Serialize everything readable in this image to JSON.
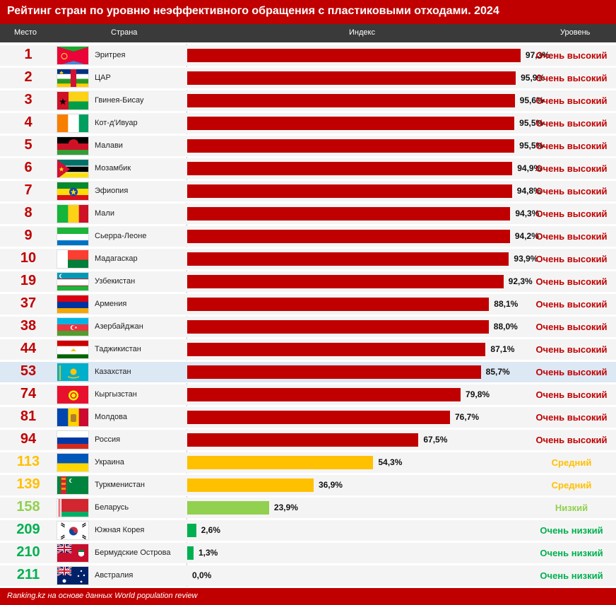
{
  "title": "Рейтинг стран по уровню неэффективного обращения с пластиковыми отходами. 2024",
  "headers": {
    "place": "Место",
    "country": "Страна",
    "index": "Индекс",
    "level": "Уровень"
  },
  "footer": "Ranking.kz на основе данных World population review",
  "colors": {
    "title_bg": "#c00000",
    "header_bg": "#3a3a3a",
    "very_high": "#c00000",
    "medium": "#ffc000",
    "low": "#92d050",
    "very_low": "#00b050",
    "highlight_row": "#dce8f4"
  },
  "chart_data": {
    "type": "bar",
    "orientation": "horizontal",
    "xlim": [
      0,
      100
    ],
    "value_suffix": "%",
    "rows": [
      {
        "rank": "1",
        "country": "Эритрея",
        "flag": "eritrea-flag",
        "value": 97.3,
        "label": "97,3%",
        "level": "Очень высокий",
        "cat": "very_high"
      },
      {
        "rank": "2",
        "country": "ЦАР",
        "flag": "car-flag",
        "value": 95.9,
        "label": "95,9%",
        "level": "Очень высокий",
        "cat": "very_high"
      },
      {
        "rank": "3",
        "country": "Гвинея-Бисау",
        "flag": "guinea-bissau-flag",
        "value": 95.6,
        "label": "95,6%",
        "level": "Очень высокий",
        "cat": "very_high"
      },
      {
        "rank": "4",
        "country": "Кот-д'Ивуар",
        "flag": "cote-divoire-flag",
        "value": 95.5,
        "label": "95,5%",
        "level": "Очень высокий",
        "cat": "very_high"
      },
      {
        "rank": "5",
        "country": "Малави",
        "flag": "malawi-flag",
        "value": 95.5,
        "label": "95,5%",
        "level": "Очень высокий",
        "cat": "very_high"
      },
      {
        "rank": "6",
        "country": "Мозамбик",
        "flag": "mozambique-flag",
        "value": 94.9,
        "label": "94,9%",
        "level": "Очень высокий",
        "cat": "very_high"
      },
      {
        "rank": "7",
        "country": "Эфиопия",
        "flag": "ethiopia-flag",
        "value": 94.8,
        "label": "94,8%",
        "level": "Очень высокий",
        "cat": "very_high"
      },
      {
        "rank": "8",
        "country": "Мали",
        "flag": "mali-flag",
        "value": 94.3,
        "label": "94,3%",
        "level": "Очень высокий",
        "cat": "very_high"
      },
      {
        "rank": "9",
        "country": "Сьерра-Леоне",
        "flag": "sierra-leone-flag",
        "value": 94.2,
        "label": "94,2%",
        "level": "Очень высокий",
        "cat": "very_high"
      },
      {
        "rank": "10",
        "country": "Мадагаскар",
        "flag": "madagascar-flag",
        "value": 93.9,
        "label": "93,9%",
        "level": "Очень высокий",
        "cat": "very_high"
      },
      {
        "rank": "19",
        "country": "Узбекистан",
        "flag": "uzbekistan-flag",
        "value": 92.3,
        "label": "92,3%",
        "level": "Очень высокий",
        "cat": "very_high"
      },
      {
        "rank": "37",
        "country": "Армения",
        "flag": "armenia-flag",
        "value": 88.1,
        "label": "88,1%",
        "level": "Очень высокий",
        "cat": "very_high"
      },
      {
        "rank": "38",
        "country": "Азербайджан",
        "flag": "azerbaijan-flag",
        "value": 88.0,
        "label": "88,0%",
        "level": "Очень высокий",
        "cat": "very_high"
      },
      {
        "rank": "44",
        "country": "Таджикистан",
        "flag": "tajikistan-flag",
        "value": 87.1,
        "label": "87,1%",
        "level": "Очень высокий",
        "cat": "very_high"
      },
      {
        "rank": "53",
        "country": "Казахстан",
        "flag": "kazakhstan-flag",
        "value": 85.7,
        "label": "85,7%",
        "level": "Очень высокий",
        "cat": "very_high",
        "highlight": true
      },
      {
        "rank": "74",
        "country": "Кыргызстан",
        "flag": "kyrgyzstan-flag",
        "value": 79.8,
        "label": "79,8%",
        "level": "Очень высокий",
        "cat": "very_high"
      },
      {
        "rank": "81",
        "country": "Молдова",
        "flag": "moldova-flag",
        "value": 76.7,
        "label": "76,7%",
        "level": "Очень высокий",
        "cat": "very_high"
      },
      {
        "rank": "94",
        "country": "Россия",
        "flag": "russia-flag",
        "value": 67.5,
        "label": "67,5%",
        "level": "Очень высокий",
        "cat": "very_high"
      },
      {
        "rank": "113",
        "country": "Украина",
        "flag": "ukraine-flag",
        "value": 54.3,
        "label": "54,3%",
        "level": "Средний",
        "cat": "medium"
      },
      {
        "rank": "139",
        "country": "Туркменистан",
        "flag": "turkmenistan-flag",
        "value": 36.9,
        "label": "36,9%",
        "level": "Средний",
        "cat": "medium"
      },
      {
        "rank": "158",
        "country": "Беларусь",
        "flag": "belarus-flag",
        "value": 23.9,
        "label": "23,9%",
        "level": "Низкий",
        "cat": "low"
      },
      {
        "rank": "209",
        "country": "Южная Корея",
        "flag": "south-korea-flag",
        "value": 2.6,
        "label": "2,6%",
        "level": "Очень низкий",
        "cat": "very_low"
      },
      {
        "rank": "210",
        "country": "Бермудские Острова",
        "flag": "bermuda-flag",
        "value": 1.3,
        "label": "1,3%",
        "level": "Очень низкий",
        "cat": "very_low"
      },
      {
        "rank": "211",
        "country": "Австралия",
        "flag": "australia-flag",
        "value": 0.0,
        "label": "0,0%",
        "level": "Очень низкий",
        "cat": "very_low"
      }
    ]
  }
}
